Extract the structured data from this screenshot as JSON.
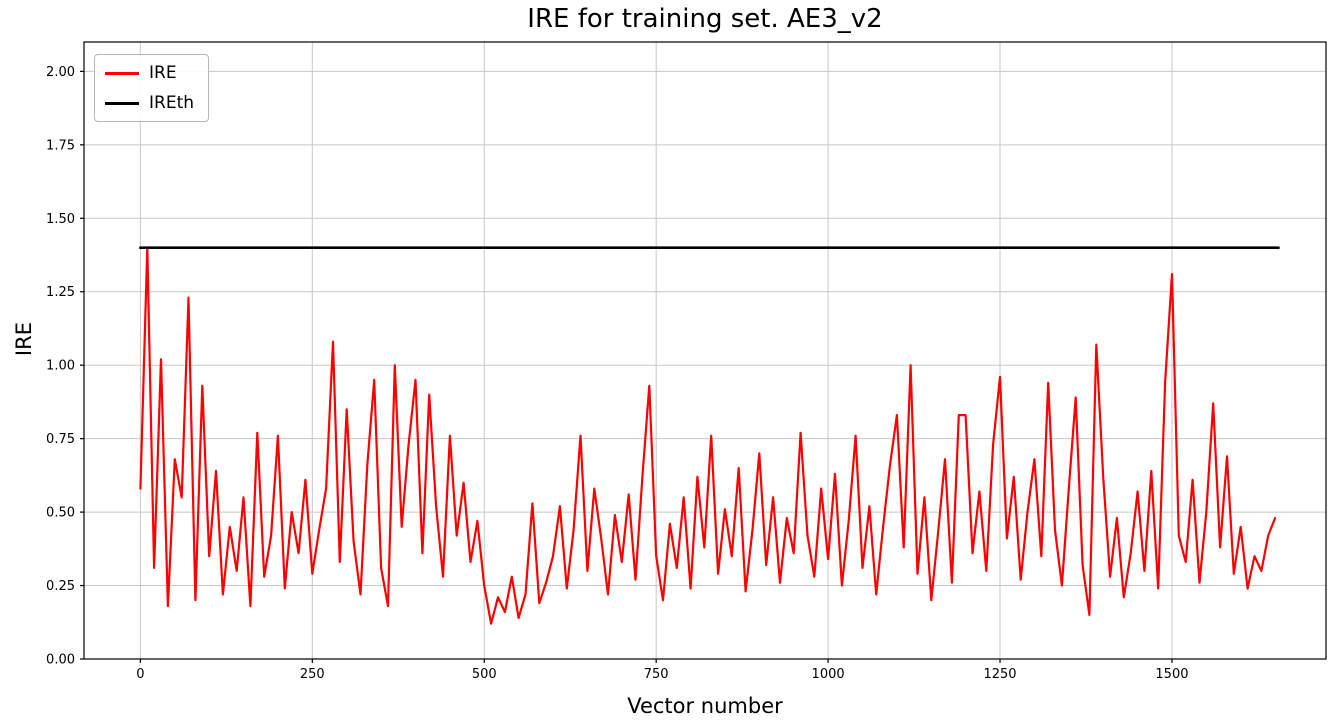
{
  "chart_data": {
    "type": "line",
    "title": "IRE for training set. AE3_v2",
    "xlabel": "Vector number",
    "ylabel": "IRE",
    "xlim": [
      -82,
      1724
    ],
    "ylim": [
      0,
      2.1
    ],
    "x_ticks": [
      0,
      250,
      500,
      750,
      1000,
      1250,
      1500
    ],
    "y_ticks": [
      0.0,
      0.25,
      0.5,
      0.75,
      1.0,
      1.25,
      1.5,
      1.75,
      2.0
    ],
    "grid": true,
    "grid_color": "#c8c8c8",
    "legend": {
      "position": "upper left",
      "entries": [
        {
          "label": "IRE",
          "color": "#ff0000"
        },
        {
          "label": "IREth",
          "color": "#000000"
        }
      ]
    },
    "threshold_value": 1.4,
    "series": [
      {
        "name": "IRE",
        "color": "#ff0000",
        "linewidth": 2.2,
        "x": [
          0,
          10,
          20,
          30,
          40,
          50,
          60,
          70,
          80,
          90,
          100,
          110,
          120,
          130,
          140,
          150,
          160,
          170,
          180,
          190,
          200,
          210,
          220,
          230,
          240,
          250,
          260,
          270,
          280,
          290,
          300,
          310,
          320,
          330,
          340,
          350,
          360,
          370,
          380,
          390,
          400,
          410,
          420,
          430,
          440,
          450,
          460,
          470,
          480,
          490,
          500,
          510,
          520,
          530,
          540,
          550,
          560,
          570,
          580,
          590,
          600,
          610,
          620,
          630,
          640,
          650,
          660,
          670,
          680,
          690,
          700,
          710,
          720,
          730,
          740,
          750,
          760,
          770,
          780,
          790,
          800,
          810,
          820,
          830,
          840,
          850,
          860,
          870,
          880,
          890,
          900,
          910,
          920,
          930,
          940,
          950,
          960,
          970,
          980,
          990,
          1000,
          1010,
          1020,
          1030,
          1040,
          1050,
          1060,
          1070,
          1080,
          1090,
          1100,
          1110,
          1120,
          1130,
          1140,
          1150,
          1160,
          1170,
          1180,
          1190,
          1200,
          1210,
          1220,
          1230,
          1240,
          1250,
          1260,
          1270,
          1280,
          1290,
          1300,
          1310,
          1320,
          1330,
          1340,
          1350,
          1360,
          1370,
          1380,
          1390,
          1400,
          1410,
          1420,
          1430,
          1440,
          1450,
          1460,
          1470,
          1480,
          1490,
          1500,
          1510,
          1520,
          1530,
          1540,
          1550,
          1560,
          1570,
          1580,
          1590,
          1600,
          1610,
          1620,
          1630,
          1640,
          1650
        ],
        "y": [
          0.58,
          1.4,
          0.31,
          1.02,
          0.18,
          0.68,
          0.55,
          1.23,
          0.2,
          0.93,
          0.35,
          0.64,
          0.22,
          0.45,
          0.3,
          0.55,
          0.18,
          0.77,
          0.28,
          0.42,
          0.76,
          0.24,
          0.5,
          0.36,
          0.61,
          0.29,
          0.44,
          0.58,
          1.08,
          0.33,
          0.85,
          0.4,
          0.22,
          0.66,
          0.95,
          0.31,
          0.18,
          1.0,
          0.45,
          0.73,
          0.95,
          0.36,
          0.9,
          0.52,
          0.28,
          0.76,
          0.42,
          0.6,
          0.33,
          0.47,
          0.25,
          0.12,
          0.21,
          0.16,
          0.28,
          0.14,
          0.22,
          0.53,
          0.19,
          0.26,
          0.35,
          0.52,
          0.24,
          0.44,
          0.76,
          0.3,
          0.58,
          0.41,
          0.22,
          0.49,
          0.33,
          0.56,
          0.27,
          0.62,
          0.93,
          0.35,
          0.2,
          0.46,
          0.31,
          0.55,
          0.24,
          0.62,
          0.38,
          0.76,
          0.29,
          0.51,
          0.35,
          0.65,
          0.23,
          0.44,
          0.7,
          0.32,
          0.55,
          0.26,
          0.48,
          0.36,
          0.77,
          0.42,
          0.28,
          0.58,
          0.34,
          0.63,
          0.25,
          0.47,
          0.76,
          0.31,
          0.52,
          0.22,
          0.45,
          0.66,
          0.83,
          0.38,
          1.0,
          0.29,
          0.55,
          0.2,
          0.43,
          0.68,
          0.26,
          0.83,
          0.83,
          0.36,
          0.57,
          0.3,
          0.73,
          0.96,
          0.41,
          0.62,
          0.27,
          0.5,
          0.68,
          0.35,
          0.94,
          0.44,
          0.25,
          0.58,
          0.89,
          0.32,
          0.15,
          1.07,
          0.62,
          0.28,
          0.48,
          0.21,
          0.36,
          0.57,
          0.3,
          0.64,
          0.24,
          0.94,
          1.31,
          0.42,
          0.33,
          0.61,
          0.26,
          0.5,
          0.87,
          0.38,
          0.69,
          0.29,
          0.45,
          0.24,
          0.35,
          0.3,
          0.42,
          0.48
        ]
      },
      {
        "name": "IREth",
        "color": "#000000",
        "linewidth": 2.6,
        "x": [
          0,
          1655
        ],
        "y": [
          1.4,
          1.4
        ]
      }
    ]
  }
}
